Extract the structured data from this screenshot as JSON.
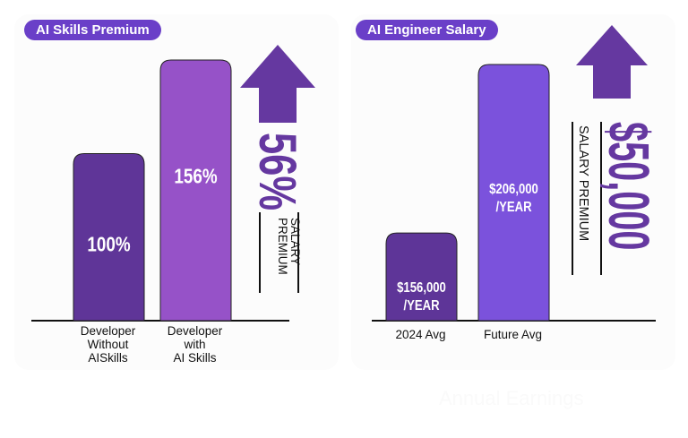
{
  "chart_data": [
    {
      "type": "bar",
      "title": "AI Skills Premium",
      "categories": [
        "Developer\nWithout\nAISkills",
        "Developer\nwith\nAI Skills"
      ],
      "category_lines": [
        [
          "Developer",
          "Without",
          "AISkills"
        ],
        [
          "Developer",
          "with",
          "AI Skills"
        ]
      ],
      "values": [
        100,
        156
      ],
      "value_labels": [
        "100%",
        "156%"
      ],
      "colors": [
        "#5f3598",
        "#9652c8"
      ],
      "ylim": [
        0,
        160
      ],
      "unit": "%",
      "annotation": {
        "value": "56%",
        "label_lines": [
          "SALARY",
          "PREMIUM"
        ],
        "arrow": "arrow-up-icon",
        "color": "#6538a0"
      }
    },
    {
      "type": "bar",
      "title": "AI Engineer Salary",
      "categories": [
        "2024 Avg",
        "Future Avg"
      ],
      "values": [
        156000,
        206000
      ],
      "value_labels": [
        [
          "$156,000",
          "/YEAR"
        ],
        [
          "$206,000",
          "/YEAR"
        ]
      ],
      "colors": [
        "#5e3598",
        "#7b52dc"
      ],
      "ylim": [
        130000,
        210000
      ],
      "unit": "USD/year",
      "annotation": {
        "value": "$50,000",
        "label": "SALARY PREMIUM",
        "arrow": "arrow-up-icon",
        "color": "#6538a0"
      }
    }
  ],
  "badge_color": "#6a3fc8",
  "watermark": "Annual Earnings"
}
